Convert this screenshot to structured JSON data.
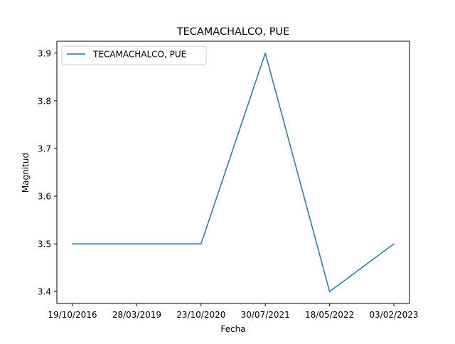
{
  "chart_data": {
    "type": "line",
    "title": "TECAMACHALCO, PUE",
    "xlabel": "Fecha",
    "ylabel": "Magnitud",
    "categories": [
      "19/10/2016",
      "28/03/2019",
      "23/10/2020",
      "30/07/2021",
      "18/05/2022",
      "03/02/2023"
    ],
    "series": [
      {
        "name": "TECAMACHALCO, PUE",
        "values": [
          3.5,
          3.5,
          3.5,
          3.9,
          3.4,
          3.5
        ],
        "color": "#1f77b4"
      }
    ],
    "ylim": [
      3.375,
      3.925
    ],
    "yticks": [
      "3.4",
      "3.5",
      "3.6",
      "3.7",
      "3.8",
      "3.9"
    ],
    "grid": false,
    "legend_position": "top-left"
  }
}
